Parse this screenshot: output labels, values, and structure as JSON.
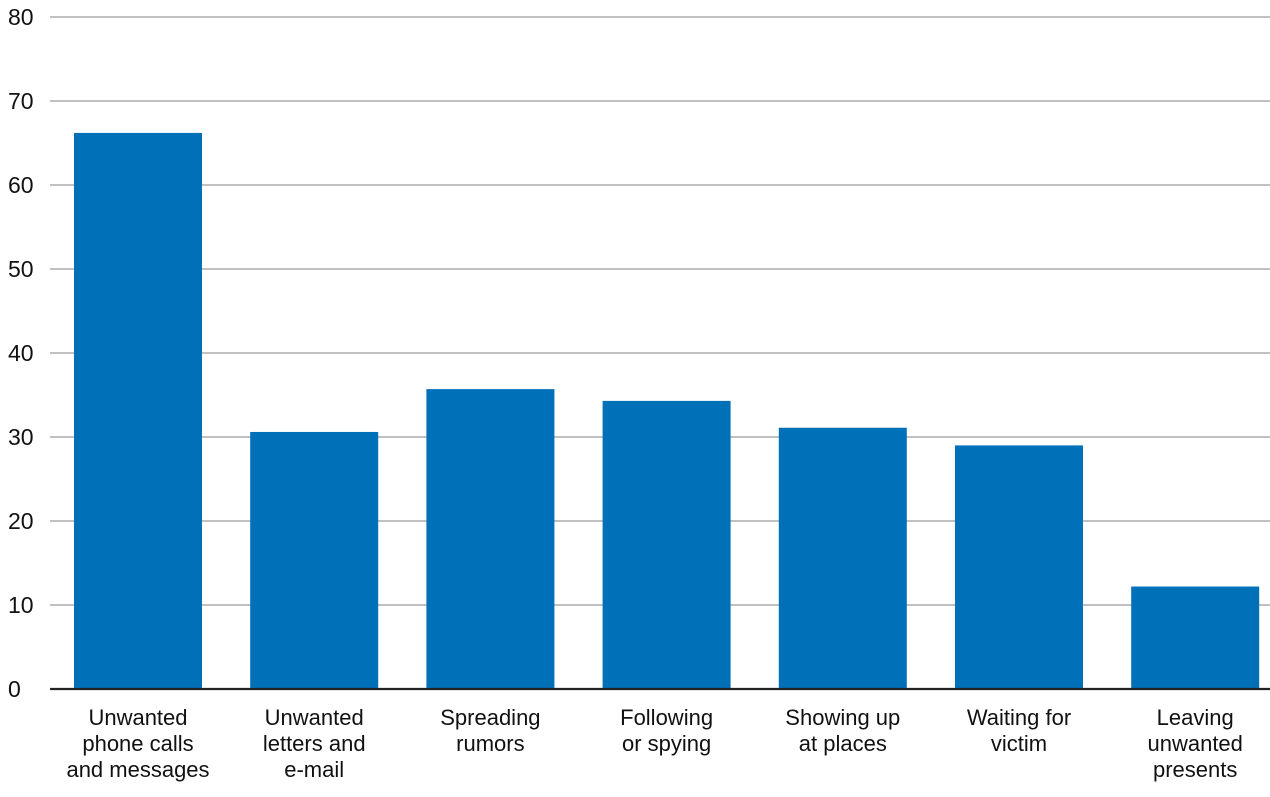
{
  "chart_data": {
    "type": "bar",
    "title": "",
    "xlabel": "",
    "ylabel": "",
    "ylim": [
      0,
      80
    ],
    "yticks": [
      0,
      10,
      20,
      30,
      40,
      50,
      60,
      70,
      80
    ],
    "grid": true,
    "legend": "none",
    "bar_color": "#0070b8",
    "categories": [
      [
        "Unwanted",
        "phone calls",
        "and messages"
      ],
      [
        "Unwanted",
        "letters and",
        "e-mail"
      ],
      [
        "Spreading",
        "rumors"
      ],
      [
        "Following",
        "or spying"
      ],
      [
        "Showing up",
        "at places"
      ],
      [
        "Waiting for",
        "victim"
      ],
      [
        "Leaving",
        "unwanted",
        "presents"
      ]
    ],
    "values": [
      66.2,
      30.6,
      35.7,
      34.3,
      31.1,
      29.0,
      12.2
    ]
  }
}
